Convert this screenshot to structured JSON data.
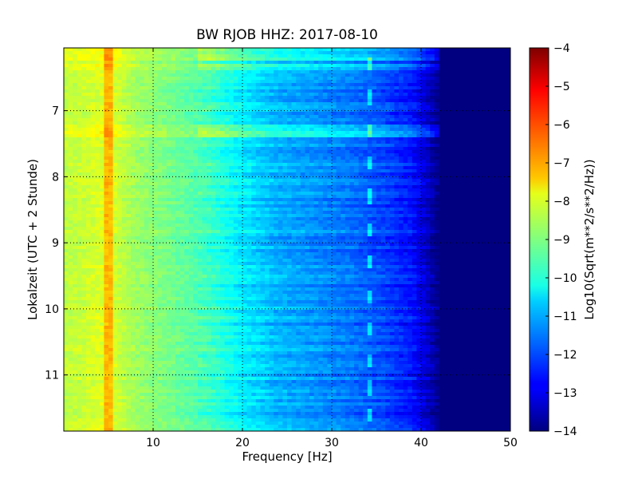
{
  "chart_data": {
    "type": "heatmap",
    "title": "BW RJOB HHZ: 2017-08-10",
    "xlabel": "Frequency [Hz]",
    "ylabel": "Lokalzeit (UTC + 2 Stunde)",
    "xlim": [
      0,
      50
    ],
    "ylim": [
      11.85,
      6.05
    ],
    "x_ticks": [
      10,
      20,
      30,
      40,
      50
    ],
    "x_tick_labels": [
      "10",
      "20",
      "30",
      "40",
      "50"
    ],
    "y_ticks": [
      7,
      8,
      9,
      10,
      11
    ],
    "y_tick_labels": [
      "7",
      "8",
      "9",
      "10",
      "11"
    ],
    "grid": true,
    "colormap": "jet",
    "colorbar": {
      "label": "Log10(Sqrt(m**2/s**2/Hz))",
      "range": [
        -14,
        -4
      ],
      "ticks": [
        -4,
        -5,
        -6,
        -7,
        -8,
        -9,
        -10,
        -11,
        -12,
        -13,
        -14
      ],
      "tick_labels": [
        "−4",
        "−5",
        "−6",
        "−7",
        "−8",
        "−9",
        "−10",
        "−11",
        "−12",
        "−13",
        "−14"
      ]
    },
    "spectrum_profile": {
      "frequency_hz": [
        0,
        2,
        5,
        8,
        12,
        16,
        20,
        24,
        28,
        32,
        36,
        39,
        41,
        42,
        50
      ],
      "log10_amplitude": [
        -8.4,
        -8.3,
        -8.0,
        -8.7,
        -9.1,
        -9.6,
        -10.4,
        -11.0,
        -11.3,
        -11.6,
        -12.1,
        -12.6,
        -13.4,
        -14.0,
        -14.0
      ]
    },
    "features": {
      "spectral_line_hz": 5.0,
      "bright_bands_hours": [
        6.1,
        6.2,
        6.35,
        7.25,
        7.35
      ],
      "tonal_hook_hz": 34.2,
      "tonal_hook_hours": [
        6.3,
        6.8,
        7.3,
        7.8,
        8.3,
        8.8,
        9.3,
        9.8,
        10.3,
        10.8,
        11.2,
        11.6
      ]
    }
  }
}
